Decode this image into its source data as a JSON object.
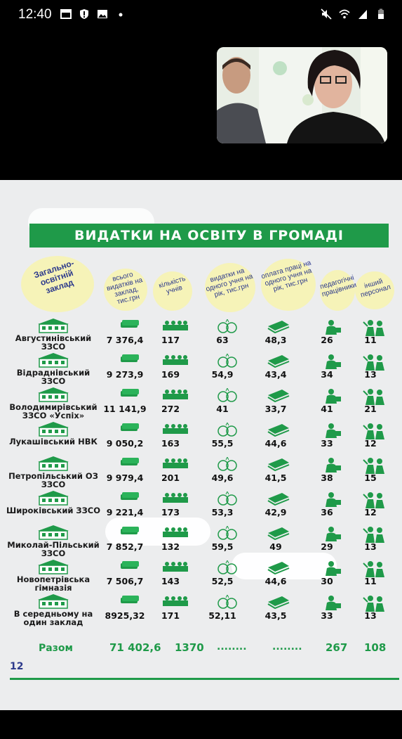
{
  "status_bar": {
    "time": "12:40"
  },
  "slide": {
    "title": "ВИДАТКИ НА ОСВІТУ В ГРОМАДІ",
    "first_column_header": "Загально-освітній заклад",
    "column_headers": [
      "всього видатків на заклад, тис.грн",
      "кількість учнів",
      "видатки на одного учня на рік, тис.грн",
      "оплата праці на одного учня на рік, тис.грн",
      "педагогічні працівники",
      "інший персонал"
    ],
    "rows": [
      {
        "name": "Августинівський ЗЗСО",
        "total": "7 376,4",
        "students": "117",
        "per_student": "63",
        "salary": "48,3",
        "teachers": "26",
        "other": "11"
      },
      {
        "name": "Відраднівський ЗЗСО",
        "total": "9 273,9",
        "students": "169",
        "per_student": "54,9",
        "salary": "43,4",
        "teachers": "34",
        "other": "13"
      },
      {
        "name": "Володимирівський ЗЗСО «Успіх»",
        "total": "11 141,9",
        "students": "272",
        "per_student": "41",
        "salary": "33,7",
        "teachers": "41",
        "other": "21"
      },
      {
        "name": "Лукашівський НВК",
        "total": "9 050,2",
        "students": "163",
        "per_student": "55,5",
        "salary": "44,6",
        "teachers": "33",
        "other": "12"
      },
      {
        "name": "Петропільський ОЗ ЗЗСО",
        "total": "9 979,4",
        "students": "201",
        "per_student": "49,6",
        "salary": "41,5",
        "teachers": "38",
        "other": "15"
      },
      {
        "name": "Широківський ЗЗСО",
        "total": "9 221,4",
        "students": "173",
        "per_student": "53,3",
        "salary": "42,9",
        "teachers": "36",
        "other": "12"
      },
      {
        "name": "Миколай-Пільський ЗЗСО",
        "total": "7 852,7",
        "students": "132",
        "per_student": "59,5",
        "salary": "49",
        "teachers": "29",
        "other": "13"
      },
      {
        "name": "Новопетрівська гімназія",
        "total": "7 506,7",
        "students": "143",
        "per_student": "52,5",
        "salary": "44,6",
        "teachers": "30",
        "other": "11"
      },
      {
        "name": "В середньому на один заклад",
        "total": "8925,32",
        "students": "171",
        "per_student": "52,11",
        "salary": "43,5",
        "teachers": "33",
        "other": "13"
      }
    ],
    "totals": {
      "label": "Разом",
      "total": "71 402,6",
      "students": "1370",
      "per_student": "........",
      "salary": "........",
      "teachers": "267",
      "other": "108"
    },
    "page_number": "12"
  },
  "colors": {
    "green": "#1f9a49",
    "header_blue": "#2d3a8c",
    "slide_bg": "#ecedee"
  }
}
